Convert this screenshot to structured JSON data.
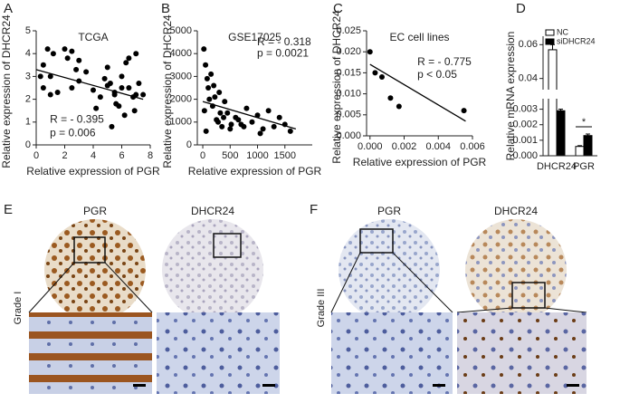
{
  "chart_data": [
    {
      "type": "scatter",
      "panel_label": "A",
      "title": "TCGA",
      "x_label": "Relative expression of PGR",
      "y_label": "Relative expression of DHCR24",
      "x": [
        0.5,
        0.8,
        1,
        1,
        1.2,
        0.3,
        0.5,
        2,
        2.2,
        2.5,
        2.5,
        3,
        3,
        3.5,
        4,
        4.2,
        4.5,
        5,
        5,
        5.2,
        5.5,
        5.5,
        5.8,
        6,
        6,
        6.2,
        6.5,
        6.5,
        6.8,
        7,
        7,
        7.2,
        7.5,
        5.3,
        4.8,
        5.6,
        6.3,
        6.9,
        2.8,
        1.5
      ],
      "y": [
        3.5,
        4.2,
        3,
        2.2,
        4,
        3,
        2.5,
        4.2,
        3.8,
        4.1,
        2.5,
        3.7,
        2.8,
        3.2,
        2.4,
        1.6,
        2.1,
        3.4,
        2.6,
        2.7,
        2.3,
        2.2,
        1.7,
        3,
        2.5,
        1.3,
        3.8,
        2.5,
        2.1,
        4,
        2.2,
        2.7,
        2.2,
        0.8,
        2.9,
        1.8,
        3.6,
        1.5,
        3.3,
        2.3
      ],
      "fit": {
        "x": [
          0,
          7.5
        ],
        "y": [
          3.3,
          2.0
        ]
      },
      "annotations": [
        "R = - 0.395",
        "p = 0.006"
      ],
      "color": "#000000",
      "xlim": [
        0,
        8
      ],
      "xticks": [
        0,
        2,
        4,
        6,
        8
      ],
      "ylim": [
        0,
        5
      ],
      "yticks": [
        0,
        1,
        2,
        3,
        4,
        5
      ]
    },
    {
      "type": "scatter",
      "panel_label": "B",
      "title": "GSE17025",
      "x_label": "Relative expression of PGR",
      "y_label": "Relative expression of DHCR24",
      "x": [
        20,
        50,
        80,
        100,
        30,
        150,
        200,
        250,
        300,
        350,
        400,
        450,
        500,
        600,
        700,
        800,
        900,
        1000,
        1100,
        1200,
        1300,
        1400,
        1500,
        1600,
        60,
        120,
        180,
        220,
        280,
        320,
        380,
        520,
        650,
        750,
        1050
      ],
      "y": [
        4200,
        3500,
        2900,
        2500,
        1500,
        3100,
        2600,
        1100,
        2300,
        800,
        1900,
        1400,
        700,
        1200,
        900,
        1600,
        1000,
        1300,
        700,
        1500,
        800,
        1200,
        900,
        600,
        600,
        2000,
        1700,
        2100,
        1000,
        1400,
        1200,
        900,
        1100,
        800,
        500
      ],
      "fit": {
        "x": [
          0,
          1700
        ],
        "y": [
          1900,
          700
        ]
      },
      "annotations": [
        "R = - 0.318",
        "p = 0.0021"
      ],
      "color": "#000000",
      "xlim": [
        -100,
        2000
      ],
      "xticks": [
        0,
        500,
        1000,
        1500
      ],
      "ylim": [
        0,
        5000
      ],
      "yticks": [
        0,
        1000,
        2000,
        3000,
        4000,
        5000
      ]
    },
    {
      "type": "scatter",
      "panel_label": "C",
      "title": "EC cell lines",
      "x_label": "Relative expression of PGR",
      "y_label": "Relative expression of DHCR24",
      "x": [
        0,
        0.0003,
        0.0007,
        0.0012,
        0.0017,
        0.0055
      ],
      "y": [
        0.02,
        0.015,
        0.014,
        0.009,
        0.007,
        0.006
      ],
      "fit": {
        "x": [
          0,
          0.0056
        ],
        "y": [
          0.017,
          0.0035
        ]
      },
      "annotations": [
        "R = - 0.775",
        "p < 0.05"
      ],
      "color": "#000000",
      "xlim": [
        -0.0002,
        0.006
      ],
      "xticks": [
        {
          "value": 0,
          "label": "0.000"
        },
        0.002,
        0.004,
        0.006
      ],
      "ylim": [
        0,
        0.025
      ],
      "yticks": [
        {
          "value": 0,
          "label": "0.000"
        },
        0.005,
        {
          "value": 0.01,
          "label": "0.010"
        },
        0.015,
        {
          "value": 0.02,
          "label": "0.020"
        },
        0.025
      ]
    },
    {
      "type": "bar",
      "panel_label": "D",
      "y_label": "Relative mRNA expression",
      "categories": [
        "DHCR24",
        "PGR"
      ],
      "series": [
        {
          "name": "NC",
          "color": "#ffffff",
          "values": [
            0.057,
            0.0006
          ],
          "errors": [
            0.003,
            5e-05
          ]
        },
        {
          "name": "siDHCR24",
          "color": "#000000",
          "values": [
            0.0029,
            0.0013
          ],
          "errors": [
            0.0001,
            0.0001
          ]
        }
      ],
      "significance": "*",
      "ylim": [
        0,
        0.065
      ],
      "axis_break": [
        0.0035,
        0.035
      ],
      "yticks": [
        {
          "value": 0,
          "label": "0.000"
        },
        0.001,
        0.002,
        0.003,
        0.04,
        0.06
      ]
    }
  ],
  "panels": {
    "E": {
      "label": "E",
      "columns": [
        "PGR",
        "DHCR24"
      ],
      "row_label": "Grade I"
    },
    "F": {
      "label": "F",
      "columns": [
        "PGR",
        "DHCR24"
      ],
      "row_label": "Grade III"
    }
  }
}
